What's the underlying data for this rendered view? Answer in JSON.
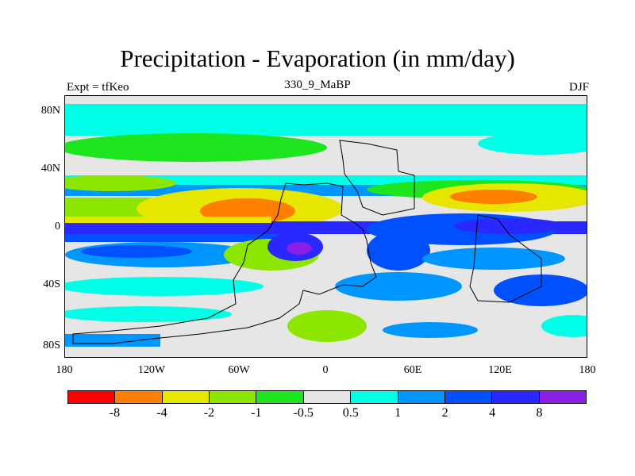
{
  "title": "Precipitation - Evaporation (in mm/day)",
  "subtitle": "330_9_MaBP",
  "left_label": "Expt = tfKeo",
  "right_label": "DJF",
  "y_ticks": [
    "80N",
    "40N",
    "0",
    "40S",
    "80S"
  ],
  "x_ticks": [
    "180",
    "120W",
    "60W",
    "0",
    "60E",
    "120E",
    "180"
  ],
  "colorbar": {
    "colors": [
      "#ff0000",
      "#ff8000",
      "#e6e600",
      "#8ce600",
      "#1ee61e",
      "#e6e6e6",
      "#00ffe6",
      "#0096ff",
      "#0050ff",
      "#2828ff",
      "#8c1ee6"
    ],
    "labels": [
      "-8",
      "-4",
      "-2",
      "-1",
      "-0.5",
      "0.5",
      "1",
      "2",
      "4",
      "8"
    ]
  }
}
